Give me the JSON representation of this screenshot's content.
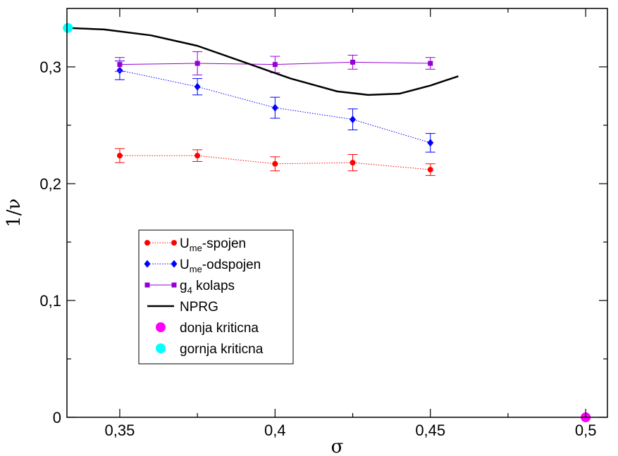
{
  "chart_data": {
    "type": "line",
    "xlabel": "σ",
    "ylabel": "1/ν",
    "xlim": [
      0.333,
      0.507
    ],
    "ylim": [
      0,
      0.35
    ],
    "x_ticks": [
      {
        "value": 0.35,
        "label": "0,35"
      },
      {
        "value": 0.4,
        "label": "0,4"
      },
      {
        "value": 0.45,
        "label": "0,45"
      },
      {
        "value": 0.5,
        "label": "0,5"
      }
    ],
    "x_minor_ticks": [
      0.375,
      0.425,
      0.475
    ],
    "y_ticks": [
      {
        "value": 0,
        "label": "0"
      },
      {
        "value": 0.1,
        "label": "0,1"
      },
      {
        "value": 0.2,
        "label": "0,2"
      },
      {
        "value": 0.3,
        "label": "0,3"
      }
    ],
    "y_minor_ticks": [
      0.05,
      0.15,
      0.25
    ],
    "grid": false,
    "legend_position": "lower-left",
    "series": [
      {
        "name": "U_me-spojen",
        "legend_main": "U",
        "legend_sub": "me",
        "legend_rest": "-spojen",
        "color": "#ff0000",
        "marker": "circle",
        "line": "dotted",
        "x": [
          0.35,
          0.375,
          0.4,
          0.425,
          0.45
        ],
        "y": [
          0.224,
          0.224,
          0.217,
          0.218,
          0.212
        ],
        "err": [
          0.006,
          0.005,
          0.006,
          0.007,
          0.005
        ]
      },
      {
        "name": "U_me-odspojen",
        "legend_main": "U",
        "legend_sub": "me",
        "legend_rest": "-odspojen",
        "color": "#0000ff",
        "marker": "diamond",
        "line": "dotted",
        "x": [
          0.35,
          0.375,
          0.4,
          0.425,
          0.45
        ],
        "y": [
          0.297,
          0.283,
          0.265,
          0.255,
          0.235
        ],
        "err": [
          0.008,
          0.007,
          0.009,
          0.009,
          0.008
        ]
      },
      {
        "name": "g_4 kolaps",
        "legend_main": "g",
        "legend_sub": "4",
        "legend_rest": " kolaps",
        "color": "#9400d3",
        "marker": "square",
        "line": "solid",
        "x": [
          0.35,
          0.375,
          0.4,
          0.425,
          0.45
        ],
        "y": [
          0.302,
          0.303,
          0.302,
          0.304,
          0.303
        ],
        "err": [
          0.006,
          0.01,
          0.007,
          0.006,
          0.005
        ]
      },
      {
        "name": "NPRG",
        "legend_main": "NPRG",
        "legend_sub": "",
        "legend_rest": "",
        "color": "#000000",
        "marker": "none",
        "line": "solid-thick",
        "x": [
          0.3333,
          0.345,
          0.36,
          0.375,
          0.39,
          0.405,
          0.42,
          0.43,
          0.44,
          0.45,
          0.459
        ],
        "y": [
          0.3333,
          0.332,
          0.327,
          0.318,
          0.304,
          0.29,
          0.279,
          0.276,
          0.277,
          0.284,
          0.292
        ]
      },
      {
        "name": "donja kriticna",
        "legend_main": "donja kriticna",
        "legend_sub": "",
        "legend_rest": "",
        "color": "#ff00ff",
        "marker": "big-circle",
        "line": "none",
        "x": [
          0.5
        ],
        "y": [
          0
        ]
      },
      {
        "name": "gornja kriticna",
        "legend_main": "gornja kriticna",
        "legend_sub": "",
        "legend_rest": "",
        "color": "#00ffff",
        "marker": "big-circle",
        "line": "none",
        "x": [
          0.3333
        ],
        "y": [
          0.3333
        ]
      }
    ]
  }
}
